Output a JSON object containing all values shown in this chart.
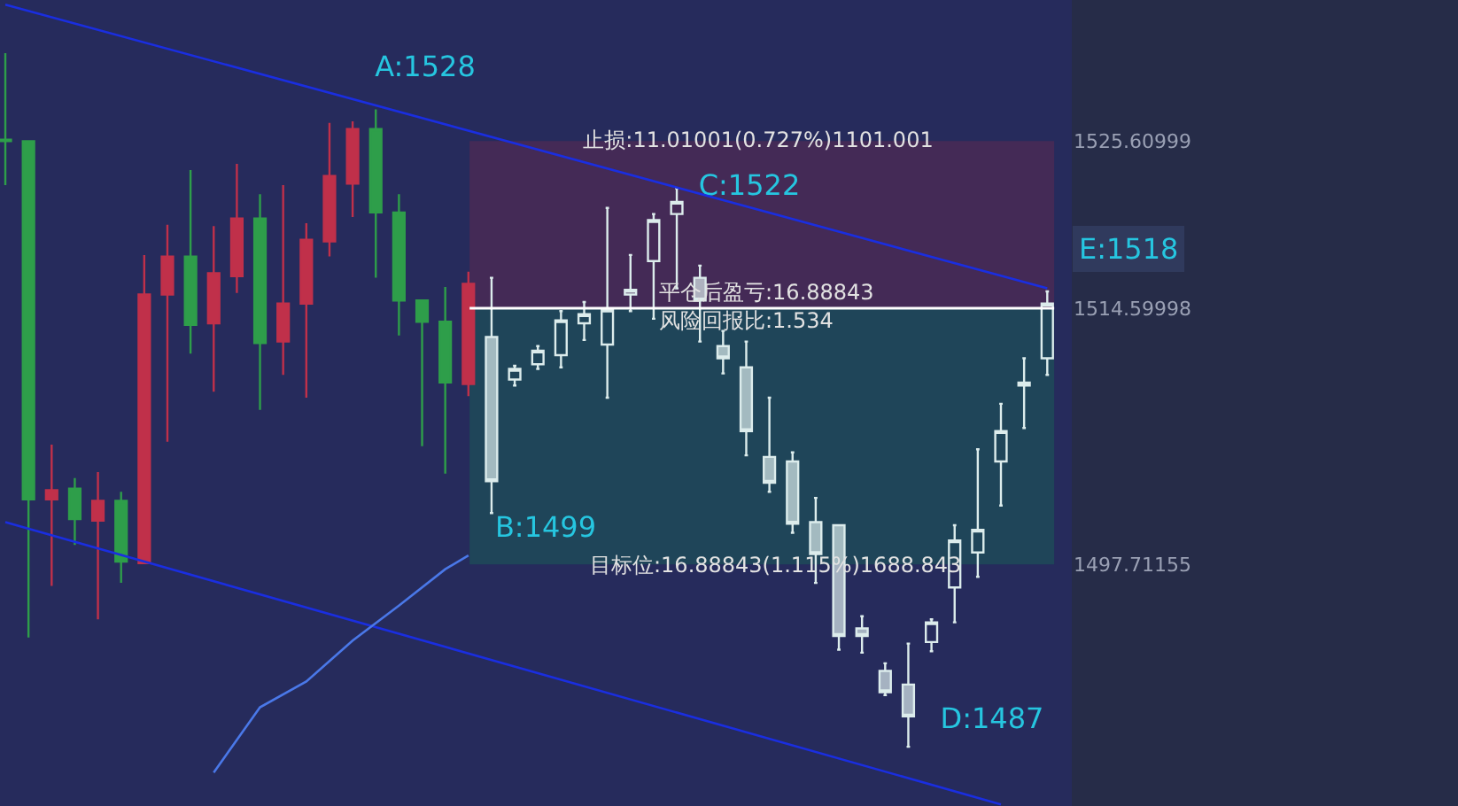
{
  "chart_data": {
    "type": "candlestick",
    "categories": [
      null,
      null,
      null,
      null,
      null,
      null,
      null,
      null,
      null,
      null,
      null,
      null,
      null,
      null,
      null,
      null,
      null,
      null,
      null,
      null,
      null,
      null,
      null,
      null,
      null,
      null,
      null,
      null,
      null,
      null,
      null,
      null,
      null,
      null,
      null,
      null,
      null,
      null,
      null,
      null,
      null,
      null,
      null,
      null,
      null,
      null
    ],
    "series": [
      {
        "colors": [
          "#2e9e4a",
          "#2e9e4a",
          "#c0304a",
          "#2e9e4a",
          "#c0304a",
          "#2e9e4a",
          "#c0304a",
          "#c0304a",
          "#2e9e4a",
          "#c0304a",
          "#c0304a",
          "#2e9e4a",
          "#c0304a",
          "#c0304a",
          "#c0304a",
          "#c0304a",
          "#2e9e4a",
          "#2e9e4a",
          "#2e9e4a",
          "#2e9e4a",
          "#c0304a",
          null,
          null,
          null,
          null,
          null,
          null,
          null,
          null,
          null,
          null,
          null,
          null,
          null,
          null,
          null,
          null,
          null,
          null,
          null,
          null,
          null,
          null,
          null,
          null,
          null
        ],
        "ohlc": [
          [
            1525.6,
            1531.4,
            1522.7,
            1525.7
          ],
          [
            1502.0,
            1525.6,
            1492.9,
            1525.6
          ],
          [
            1502.6,
            1505.6,
            1496.3,
            1502.0
          ],
          [
            1500.7,
            1503.4,
            1499.0,
            1502.7
          ],
          [
            1501.9,
            1503.8,
            1494.1,
            1500.6
          ],
          [
            1497.9,
            1502.5,
            1496.5,
            1501.9
          ],
          [
            1515.5,
            1518.1,
            1497.8,
            1497.8
          ],
          [
            1518.0,
            1520.1,
            1505.8,
            1515.5
          ],
          [
            1513.5,
            1523.7,
            1511.6,
            1518.0
          ],
          [
            1516.9,
            1520.0,
            1509.1,
            1513.6
          ],
          [
            1520.5,
            1524.1,
            1515.6,
            1516.7
          ],
          [
            1512.3,
            1522.1,
            1507.9,
            1520.5
          ],
          [
            1514.9,
            1522.7,
            1510.2,
            1512.4
          ],
          [
            1519.1,
            1520.2,
            1508.7,
            1514.9
          ],
          [
            1523.3,
            1526.8,
            1518.0,
            1519.0
          ],
          [
            1526.4,
            1526.9,
            1520.6,
            1522.8
          ],
          [
            1520.9,
            1527.7,
            1516.6,
            1526.4
          ],
          [
            1515.1,
            1522.1,
            1512.8,
            1520.9
          ],
          [
            1513.7,
            1515.1,
            1505.5,
            1515.1
          ],
          [
            1509.7,
            1516.0,
            1503.7,
            1513.7
          ],
          [
            1516.2,
            1517.0,
            1508.8,
            1509.6
          ],
          null,
          null,
          null,
          null,
          null,
          null,
          null,
          null,
          null,
          null,
          null,
          null,
          null,
          null,
          null,
          null,
          null,
          null,
          null,
          null,
          null,
          null,
          null,
          null,
          null
        ]
      },
      {
        "color": "#dcecec",
        "ohlc": [
          null,
          null,
          null,
          null,
          null,
          null,
          null,
          null,
          null,
          null,
          null,
          null,
          null,
          null,
          null,
          null,
          null,
          null,
          null,
          null,
          null,
          [
            1512.7,
            1516.6,
            1501.1,
            1503.2
          ],
          [
            1509.9,
            1510.8,
            1509.5,
            1510.6
          ],
          [
            1510.9,
            1512.1,
            1510.6,
            1511.8
          ],
          [
            1511.5,
            1514.4,
            1510.7,
            1513.8
          ],
          [
            1513.6,
            1515.0,
            1512.5,
            1514.2
          ],
          [
            1512.2,
            1521.2,
            1508.7,
            1514.5
          ],
          [
            1515.5,
            1518.1,
            1514.4,
            1515.8
          ],
          [
            1517.7,
            1520.8,
            1513.9,
            1520.4
          ],
          [
            1520.8,
            1522.5,
            1515.9,
            1521.6
          ],
          [
            1516.6,
            1517.4,
            1512.4,
            1515.1
          ],
          [
            1512.1,
            1513.1,
            1510.3,
            1511.3
          ],
          [
            1510.7,
            1512.4,
            1504.9,
            1506.5
          ],
          [
            1504.8,
            1508.7,
            1502.5,
            1503.1
          ],
          [
            1504.5,
            1505.1,
            1499.8,
            1500.4
          ],
          [
            1500.5,
            1502.1,
            1496.5,
            1498.4
          ],
          [
            1500.3,
            1500.3,
            1492.1,
            1493.0
          ],
          [
            1493.5,
            1494.3,
            1491.9,
            1493.0
          ],
          [
            1490.7,
            1491.2,
            1489.1,
            1489.3
          ],
          [
            1489.8,
            1492.5,
            1485.7,
            1487.7
          ],
          [
            1492.6,
            1494.1,
            1492.0,
            1493.9
          ],
          [
            1496.2,
            1500.3,
            1493.9,
            1499.3
          ],
          [
            1498.5,
            1505.3,
            1496.9,
            1500.0
          ],
          [
            1504.5,
            1508.3,
            1501.6,
            1506.5
          ],
          [
            1509.5,
            1511.3,
            1506.7,
            1509.7
          ],
          [
            1511.3,
            1515.7,
            1510.2,
            1514.9
          ]
        ]
      },
      {
        "type": "line",
        "color": "#1a2ee0",
        "values": [
          1534.6,
          null,
          null,
          null,
          null,
          null,
          null,
          null,
          null,
          null,
          null,
          null,
          null,
          null,
          null,
          null,
          null,
          null,
          null,
          null,
          null,
          null,
          null,
          null,
          null,
          null,
          null,
          null,
          null,
          null,
          null,
          null,
          null,
          null,
          null,
          null,
          null,
          null,
          null,
          null,
          null,
          null,
          null,
          null,
          null,
          1515.9
        ]
      },
      {
        "type": "line",
        "color": "#1a2ee0",
        "values": [
          1500.5,
          null,
          null,
          null,
          null,
          null,
          null,
          null,
          null,
          null,
          null,
          null,
          null,
          null,
          null,
          null,
          null,
          null,
          null,
          null,
          null,
          null,
          null,
          null,
          null,
          null,
          null,
          null,
          null,
          null,
          null,
          null,
          null,
          null,
          null,
          null,
          null,
          null,
          null,
          null,
          null,
          null,
          null,
          1481.9,
          null,
          null
        ]
      },
      {
        "type": "line",
        "color": "#4a78e8",
        "values": [
          null,
          null,
          null,
          null,
          null,
          null,
          null,
          null,
          null,
          1484.0,
          null,
          1488.3,
          null,
          1490.0,
          null,
          1492.7,
          null,
          1495.0,
          null,
          1497.4,
          1498.3,
          null,
          null,
          null,
          null,
          null,
          null,
          null,
          null,
          null,
          null,
          null,
          null,
          null,
          null,
          null,
          null,
          null,
          null,
          null,
          null,
          null,
          null,
          null,
          null,
          null
        ]
      }
    ],
    "ylim": [
      1481.8,
      1534.9
    ],
    "yticks": [
      1525.60999,
      1514.59998,
      1497.71155
    ],
    "bands": [
      {
        "axis": "y",
        "from": 1514.59998,
        "to": 1525.60999,
        "color": "#4a2a55"
      },
      {
        "axis": "y",
        "from": 1497.71155,
        "to": 1514.59998,
        "color": "#1f4a58"
      }
    ],
    "ref_lines": [
      {
        "axis": "y",
        "value": 1514.59998,
        "color": "#ffffff"
      }
    ],
    "annotations": [
      "A:1528",
      "B:1499",
      "C:1522",
      "D:1487",
      "E:1518",
      "止损:11.01001(0.727%)1101.001",
      "平仓后盈亏:16.88843",
      "风险回报比:1.534",
      "目标位:16.88843(1.115%)1688.843"
    ],
    "grid": false
  }
}
